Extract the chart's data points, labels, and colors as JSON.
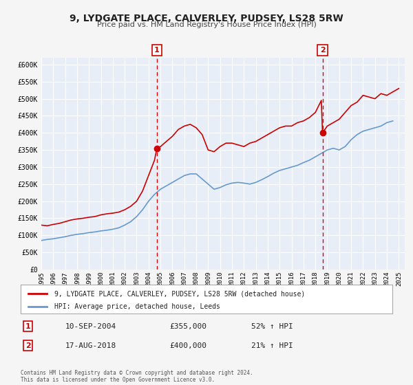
{
  "title": "9, LYDGATE PLACE, CALVERLEY, PUDSEY, LS28 5RW",
  "subtitle": "Price paid vs. HM Land Registry's House Price Index (HPI)",
  "bg_color": "#f0f4ff",
  "plot_bg_color": "#e8eef8",
  "grid_color": "#ffffff",
  "ylim": [
    0,
    620000
  ],
  "yticks": [
    0,
    50000,
    100000,
    150000,
    200000,
    250000,
    300000,
    350000,
    400000,
    450000,
    500000,
    550000,
    600000
  ],
  "ytick_labels": [
    "£0",
    "£50K",
    "£100K",
    "£150K",
    "£200K",
    "£250K",
    "£300K",
    "£350K",
    "£400K",
    "£450K",
    "£500K",
    "£550K",
    "£600K"
  ],
  "xlim_start": 1995.0,
  "xlim_end": 2025.5,
  "xticks": [
    1995,
    1996,
    1997,
    1998,
    1999,
    2000,
    2001,
    2002,
    2003,
    2004,
    2005,
    2006,
    2007,
    2008,
    2009,
    2010,
    2011,
    2012,
    2013,
    2014,
    2015,
    2016,
    2017,
    2018,
    2019,
    2020,
    2021,
    2022,
    2023,
    2024,
    2025
  ],
  "red_line_color": "#cc0000",
  "blue_line_color": "#6699cc",
  "sale1_x": 2004.7,
  "sale1_y": 355000,
  "sale2_x": 2018.6,
  "sale2_y": 400000,
  "vline_color": "#dd0000",
  "marker_color": "#cc0000",
  "legend_label_red": "9, LYDGATE PLACE, CALVERLEY, PUDSEY, LS28 5RW (detached house)",
  "legend_label_blue": "HPI: Average price, detached house, Leeds",
  "ann1_label": "1",
  "ann2_label": "2",
  "table_row1": [
    "1",
    "10-SEP-2004",
    "£355,000",
    "52% ↑ HPI"
  ],
  "table_row2": [
    "2",
    "17-AUG-2018",
    "£400,000",
    "21% ↑ HPI"
  ],
  "footnote": "Contains HM Land Registry data © Crown copyright and database right 2024.\nThis data is licensed under the Open Government Licence v3.0.",
  "red_hpi_x": [
    1995.0,
    1995.5,
    1996.0,
    1996.5,
    1997.0,
    1997.5,
    1998.0,
    1998.5,
    1999.0,
    1999.5,
    2000.0,
    2000.5,
    2001.0,
    2001.5,
    2002.0,
    2002.5,
    2003.0,
    2003.5,
    2004.0,
    2004.5,
    2004.7,
    2005.0,
    2005.5,
    2006.0,
    2006.5,
    2007.0,
    2007.5,
    2008.0,
    2008.5,
    2009.0,
    2009.5,
    2010.0,
    2010.5,
    2011.0,
    2011.5,
    2012.0,
    2012.5,
    2013.0,
    2013.5,
    2014.0,
    2014.5,
    2015.0,
    2015.5,
    2016.0,
    2016.5,
    2017.0,
    2017.5,
    2018.0,
    2018.5,
    2018.6,
    2019.0,
    2019.5,
    2020.0,
    2020.5,
    2021.0,
    2021.5,
    2022.0,
    2022.5,
    2023.0,
    2023.5,
    2024.0,
    2024.5,
    2025.0
  ],
  "red_hpi_y": [
    130000,
    128000,
    132000,
    135000,
    140000,
    145000,
    148000,
    150000,
    153000,
    155000,
    160000,
    163000,
    165000,
    168000,
    175000,
    185000,
    200000,
    230000,
    275000,
    320000,
    355000,
    360000,
    375000,
    390000,
    410000,
    420000,
    425000,
    415000,
    395000,
    350000,
    345000,
    360000,
    370000,
    370000,
    365000,
    360000,
    370000,
    375000,
    385000,
    395000,
    405000,
    415000,
    420000,
    420000,
    430000,
    435000,
    445000,
    460000,
    495000,
    400000,
    420000,
    430000,
    440000,
    460000,
    480000,
    490000,
    510000,
    505000,
    500000,
    515000,
    510000,
    520000,
    530000
  ],
  "blue_hpi_x": [
    1995.0,
    1995.5,
    1996.0,
    1996.5,
    1997.0,
    1997.5,
    1998.0,
    1998.5,
    1999.0,
    1999.5,
    2000.0,
    2000.5,
    2001.0,
    2001.5,
    2002.0,
    2002.5,
    2003.0,
    2003.5,
    2004.0,
    2004.5,
    2005.0,
    2005.5,
    2006.0,
    2006.5,
    2007.0,
    2007.5,
    2008.0,
    2008.5,
    2009.0,
    2009.5,
    2010.0,
    2010.5,
    2011.0,
    2011.5,
    2012.0,
    2012.5,
    2013.0,
    2013.5,
    2014.0,
    2014.5,
    2015.0,
    2015.5,
    2016.0,
    2016.5,
    2017.0,
    2017.5,
    2018.0,
    2018.5,
    2019.0,
    2019.5,
    2020.0,
    2020.5,
    2021.0,
    2021.5,
    2022.0,
    2022.5,
    2023.0,
    2023.5,
    2024.0,
    2024.5
  ],
  "blue_hpi_y": [
    85000,
    88000,
    90000,
    93000,
    96000,
    100000,
    103000,
    105000,
    108000,
    110000,
    113000,
    115000,
    118000,
    122000,
    130000,
    140000,
    155000,
    175000,
    200000,
    220000,
    235000,
    245000,
    255000,
    265000,
    275000,
    280000,
    280000,
    265000,
    250000,
    235000,
    240000,
    248000,
    253000,
    255000,
    253000,
    250000,
    255000,
    263000,
    272000,
    282000,
    290000,
    295000,
    300000,
    305000,
    313000,
    320000,
    330000,
    340000,
    350000,
    355000,
    350000,
    360000,
    380000,
    395000,
    405000,
    410000,
    415000,
    420000,
    430000,
    435000
  ]
}
